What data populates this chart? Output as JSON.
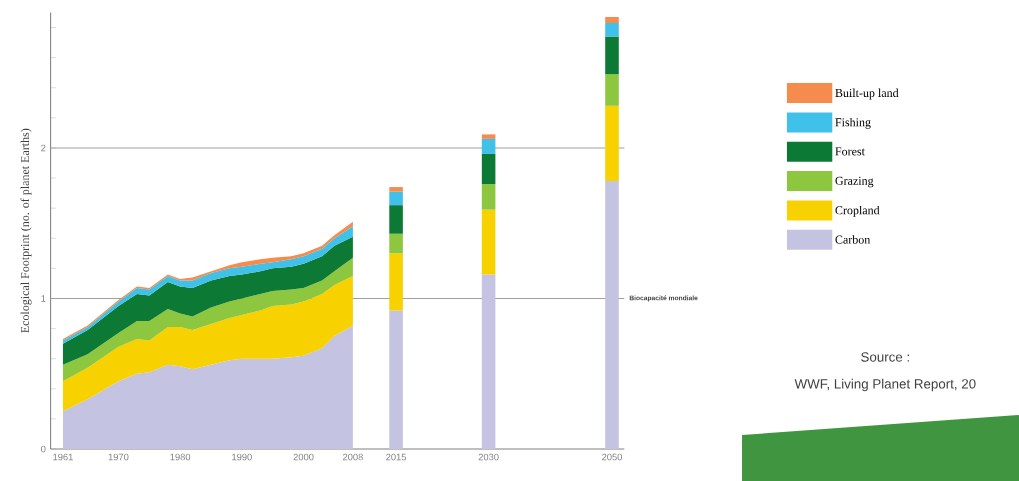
{
  "chart_data": {
    "type": "area",
    "stacked": true,
    "ylabel": "Ecological Footprint (no. of planet Earths)",
    "xlim": [
      1959,
      2052
    ],
    "xticks": [
      1961,
      1970,
      1980,
      1990,
      2000,
      2008,
      2015,
      2030,
      2050
    ],
    "ylim": [
      0,
      2.9
    ],
    "yticks": [
      0,
      {
        "value": 0.2,
        "label": null
      },
      {
        "value": 0.4,
        "label": null
      },
      {
        "value": 0.6,
        "label": null
      },
      {
        "value": 0.8,
        "label": null
      },
      1,
      {
        "value": 1.2,
        "label": null
      },
      {
        "value": 1.4,
        "label": null
      },
      {
        "value": 1.6,
        "label": null
      },
      {
        "value": 1.8,
        "label": null
      },
      2,
      {
        "value": 2.2,
        "label": null
      },
      {
        "value": 2.4,
        "label": null
      },
      {
        "value": 2.6,
        "label": null
      },
      {
        "value": 2.8,
        "label": null
      }
    ],
    "legend": "right",
    "ref_lines": [
      {
        "axis": "y",
        "value": 1,
        "label": "Biocapacité mondiale",
        "color": "#a0a0a0"
      },
      {
        "axis": "y",
        "value": 2,
        "color": "#a0a0a0"
      }
    ],
    "annotations": [
      "Source :",
      "WWF, Living Planet Report, 20"
    ],
    "x": [
      1961,
      1965,
      1970,
      1973,
      1975,
      1978,
      1980,
      1982,
      1985,
      1988,
      1990,
      1993,
      1995,
      1998,
      2000,
      2003,
      2005,
      2008,
      2015,
      2030,
      2050
    ],
    "series": [
      {
        "name": "Carbon",
        "color": "#c5c3e2",
        "values": [
          0.25,
          0.33,
          0.45,
          0.5,
          0.51,
          0.56,
          0.55,
          0.53,
          0.56,
          0.59,
          0.6,
          0.6,
          0.6,
          0.61,
          0.62,
          0.67,
          0.75,
          0.82,
          null,
          null,
          null
        ]
      },
      {
        "name": "Cropland",
        "color": "#f7d100",
        "values": [
          0.2,
          0.21,
          0.23,
          0.23,
          0.21,
          0.25,
          0.26,
          0.26,
          0.27,
          0.28,
          0.29,
          0.32,
          0.35,
          0.35,
          0.36,
          0.36,
          0.34,
          0.33,
          null,
          null,
          null
        ]
      },
      {
        "name": "Grazing",
        "color": "#8dc63f",
        "values": [
          0.11,
          0.09,
          0.09,
          0.12,
          0.13,
          0.12,
          0.09,
          0.09,
          0.11,
          0.11,
          0.11,
          0.11,
          0.1,
          0.1,
          0.09,
          0.09,
          0.09,
          0.12,
          null,
          null,
          null
        ]
      },
      {
        "name": "Forest",
        "color": "#0c7a34",
        "values": [
          0.14,
          0.16,
          0.18,
          0.18,
          0.17,
          0.18,
          0.18,
          0.19,
          0.18,
          0.17,
          0.16,
          0.15,
          0.15,
          0.15,
          0.16,
          0.16,
          0.17,
          0.14,
          null,
          null,
          null
        ]
      },
      {
        "name": "Fishing",
        "color": "#3fc1ea",
        "values": [
          0.02,
          0.02,
          0.03,
          0.04,
          0.04,
          0.04,
          0.04,
          0.05,
          0.05,
          0.05,
          0.05,
          0.05,
          0.04,
          0.05,
          0.05,
          0.05,
          0.05,
          0.07,
          null,
          null,
          null
        ]
      },
      {
        "name": "Built-up land",
        "color": "#f58b4c",
        "values": [
          0.01,
          0.01,
          0.01,
          0.01,
          0.01,
          0.01,
          0.01,
          0.02,
          0.01,
          0.02,
          0.03,
          0.03,
          0.03,
          0.02,
          0.02,
          0.02,
          0.02,
          0.03,
          null,
          null,
          null
        ]
      },
      {
        "type": "bar",
        "color": "#c5c3e2",
        "values": [
          null,
          null,
          null,
          null,
          null,
          null,
          null,
          null,
          null,
          null,
          null,
          null,
          null,
          null,
          null,
          null,
          null,
          null,
          0.92,
          1.16,
          1.78
        ]
      },
      {
        "type": "bar",
        "color": "#f7d100",
        "values": [
          null,
          null,
          null,
          null,
          null,
          null,
          null,
          null,
          null,
          null,
          null,
          null,
          null,
          null,
          null,
          null,
          null,
          null,
          0.38,
          0.43,
          0.5
        ]
      },
      {
        "type": "bar",
        "color": "#8dc63f",
        "values": [
          null,
          null,
          null,
          null,
          null,
          null,
          null,
          null,
          null,
          null,
          null,
          null,
          null,
          null,
          null,
          null,
          null,
          null,
          0.13,
          0.17,
          0.21
        ]
      },
      {
        "type": "bar",
        "color": "#0c7a34",
        "values": [
          null,
          null,
          null,
          null,
          null,
          null,
          null,
          null,
          null,
          null,
          null,
          null,
          null,
          null,
          null,
          null,
          null,
          null,
          0.19,
          0.2,
          0.25
        ]
      },
      {
        "type": "bar",
        "color": "#3fc1ea",
        "values": [
          null,
          null,
          null,
          null,
          null,
          null,
          null,
          null,
          null,
          null,
          null,
          null,
          null,
          null,
          null,
          null,
          null,
          null,
          0.09,
          0.1,
          0.09
        ]
      },
      {
        "type": "bar",
        "color": "#f58b4c",
        "values": [
          null,
          null,
          null,
          null,
          null,
          null,
          null,
          null,
          null,
          null,
          null,
          null,
          null,
          null,
          null,
          null,
          null,
          null,
          0.03,
          0.03,
          0.04
        ]
      }
    ]
  }
}
